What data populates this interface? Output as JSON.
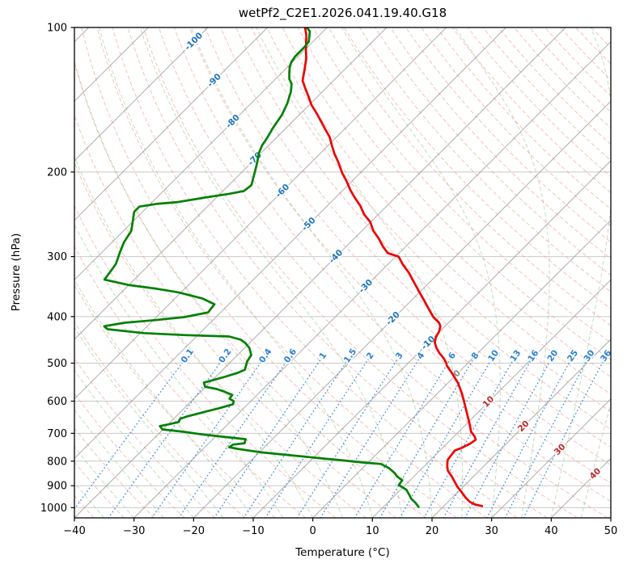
{
  "title": "wetPf2_C2E1.2026.041.19.40.G18",
  "axes": {
    "xlabel": "Temperature (°C)",
    "ylabel": "Pressure (hPa)",
    "x_ticks": [
      -40,
      -30,
      -20,
      -10,
      0,
      10,
      20,
      30,
      40,
      50
    ],
    "y_ticks": [
      100,
      200,
      300,
      400,
      500,
      600,
      700,
      800,
      900,
      1000
    ],
    "x_range": [
      -40,
      50
    ],
    "p_range": [
      100,
      1050
    ],
    "grid": true
  },
  "chart_data": {
    "type": "line",
    "subtype": "skew-t-log-p",
    "title": "wetPf2_C2E1.2026.041.19.40.G18",
    "xlabel": "Temperature (°C)",
    "ylabel": "Pressure (hPa)",
    "series": [
      {
        "name": "temperature",
        "color": "#ee0000",
        "units": [
          "degC",
          "hPa"
        ],
        "points": [
          [
            -83.7,
            100
          ],
          [
            -82.1,
            104
          ],
          [
            -79.9,
            111
          ],
          [
            -78.3,
            116
          ],
          [
            -76.8,
            122
          ],
          [
            -75.2,
            129
          ],
          [
            -73.4,
            134
          ],
          [
            -71.6,
            139
          ],
          [
            -69.6,
            145
          ],
          [
            -67.3,
            151
          ],
          [
            -65.2,
            157
          ],
          [
            -63.2,
            163
          ],
          [
            -61.2,
            169
          ],
          [
            -59.4,
            176
          ],
          [
            -57.6,
            183
          ],
          [
            -55.7,
            190
          ],
          [
            -53,
            201
          ],
          [
            -50.9,
            209
          ],
          [
            -48.8,
            218
          ],
          [
            -46.8,
            226
          ],
          [
            -44.5,
            235
          ],
          [
            -42.4,
            245
          ],
          [
            -40.1,
            254
          ],
          [
            -38.1,
            265
          ],
          [
            -35.9,
            275
          ],
          [
            -33.8,
            286
          ],
          [
            -31.9,
            295
          ],
          [
            -29.5,
            300
          ],
          [
            -27.4,
            312
          ],
          [
            -25.1,
            324
          ],
          [
            -22.5,
            340
          ],
          [
            -20,
            356
          ],
          [
            -17.6,
            372
          ],
          [
            -15.6,
            386
          ],
          [
            -13.5,
            401
          ],
          [
            -11.6,
            412
          ],
          [
            -10.8,
            419
          ],
          [
            -10.1,
            430
          ],
          [
            -9.7,
            442
          ],
          [
            -8.9,
            454
          ],
          [
            -7.8,
            465
          ],
          [
            -6.5,
            476
          ],
          [
            -4.8,
            489
          ],
          [
            -3.6,
            500
          ],
          [
            -3.1,
            506
          ],
          [
            -0.8,
            526
          ],
          [
            1.7,
            550
          ],
          [
            4,
            577
          ],
          [
            5.9,
            602
          ],
          [
            8.3,
            636
          ],
          [
            10.5,
            669
          ],
          [
            12.1,
            695
          ],
          [
            13.5,
            711
          ],
          [
            14.2,
            722
          ],
          [
            13.9,
            736
          ],
          [
            13.2,
            751
          ],
          [
            12.5,
            760
          ],
          [
            12.7,
            778
          ],
          [
            12.9,
            796
          ],
          [
            13.8,
            818
          ],
          [
            14.7,
            837
          ],
          [
            16.3,
            860
          ],
          [
            17.8,
            884
          ],
          [
            19,
            904
          ],
          [
            20.7,
            929
          ],
          [
            22.3,
            954
          ],
          [
            23.7,
            973
          ],
          [
            25,
            985
          ],
          [
            26.4,
            992
          ]
        ]
      },
      {
        "name": "dewpoint",
        "color": "#008000",
        "units": [
          "degC",
          "hPa"
        ],
        "points": [
          [
            -83.4,
            100
          ],
          [
            -82.2,
            102
          ],
          [
            -81.3,
            105
          ],
          [
            -80.7,
            107
          ],
          [
            -80.5,
            110
          ],
          [
            -80.5,
            112
          ],
          [
            -80.5,
            115
          ],
          [
            -80.2,
            118
          ],
          [
            -79.6,
            121
          ],
          [
            -78.8,
            124
          ],
          [
            -77.7,
            128
          ],
          [
            -76.5,
            131
          ],
          [
            -75.3,
            136
          ],
          [
            -74.6,
            140
          ],
          [
            -73.9,
            144
          ],
          [
            -72.9,
            152
          ],
          [
            -72.2,
            162
          ],
          [
            -71.5,
            170
          ],
          [
            -71.1,
            176
          ],
          [
            -70.3,
            183
          ],
          [
            -69.2,
            190
          ],
          [
            -68.1,
            198
          ],
          [
            -67.2,
            205
          ],
          [
            -66.2,
            213
          ],
          [
            -66.5,
            219
          ],
          [
            -68.5,
            222
          ],
          [
            -71.9,
            226
          ],
          [
            -75.7,
            231
          ],
          [
            -79,
            233
          ],
          [
            -81.4,
            236
          ],
          [
            -81.4,
            242
          ],
          [
            -80.2,
            252
          ],
          [
            -78.7,
            265
          ],
          [
            -78,
            280
          ],
          [
            -76.9,
            295
          ],
          [
            -75.7,
            311
          ],
          [
            -75.3,
            324
          ],
          [
            -75,
            335
          ],
          [
            -69.9,
            344
          ],
          [
            -64.7,
            350
          ],
          [
            -60.5,
            356
          ],
          [
            -55.3,
            367
          ],
          [
            -52.4,
            377
          ],
          [
            -52.1,
            392
          ],
          [
            -55.3,
            401
          ],
          [
            -59.8,
            407
          ],
          [
            -64.4,
            412
          ],
          [
            -67.2,
            419
          ],
          [
            -66.1,
            425
          ],
          [
            -59.4,
            433
          ],
          [
            -52.4,
            437
          ],
          [
            -44.5,
            440
          ],
          [
            -42,
            447
          ],
          [
            -40.7,
            454
          ],
          [
            -39.2,
            465
          ],
          [
            -37.7,
            481
          ],
          [
            -37.3,
            496
          ],
          [
            -36.3,
            516
          ],
          [
            -37,
            524
          ],
          [
            -38.5,
            534
          ],
          [
            -41,
            549
          ],
          [
            -40.1,
            560
          ],
          [
            -37.8,
            566
          ],
          [
            -36.1,
            573
          ],
          [
            -34.2,
            582
          ],
          [
            -34,
            593
          ],
          [
            -32.9,
            600
          ],
          [
            -32.5,
            609
          ],
          [
            -34.2,
            621
          ],
          [
            -36.2,
            633
          ],
          [
            -38.2,
            646
          ],
          [
            -38.9,
            653
          ],
          [
            -38.6,
            663
          ],
          [
            -40,
            671
          ],
          [
            -41.1,
            676
          ],
          [
            -40.1,
            687
          ],
          [
            -36.1,
            695
          ],
          [
            -32.9,
            703
          ],
          [
            -29,
            711
          ],
          [
            -24.5,
            720
          ],
          [
            -24,
            734
          ],
          [
            -25.7,
            739
          ],
          [
            -25.9,
            748
          ],
          [
            -24.3,
            754
          ],
          [
            -20,
            766
          ],
          [
            -15.6,
            775
          ],
          [
            -8.1,
            790
          ],
          [
            -5.1,
            796
          ],
          [
            -1,
            805
          ],
          [
            2.4,
            811
          ],
          [
            4.4,
            827
          ],
          [
            6.2,
            847
          ],
          [
            7.1,
            860
          ],
          [
            8.7,
            877
          ],
          [
            8.9,
            897
          ],
          [
            11,
            918
          ],
          [
            12.3,
            940
          ],
          [
            13.3,
            958
          ],
          [
            14.7,
            977
          ],
          [
            15.9,
            996
          ]
        ]
      }
    ],
    "isotherms": {
      "min": -120,
      "max": 50,
      "step": 10,
      "color": "#999999",
      "labels": [
        {
          "t": -100,
          "p": 107
        },
        {
          "t": -90,
          "p": 129
        },
        {
          "t": -80,
          "p": 157
        },
        {
          "t": -70,
          "p": 188
        },
        {
          "t": -60,
          "p": 219
        },
        {
          "t": -50,
          "p": 257
        },
        {
          "t": -40,
          "p": 300
        },
        {
          "t": -30,
          "p": 346
        },
        {
          "t": -20,
          "p": 404
        },
        {
          "t": -10,
          "p": 454
        },
        {
          "t": 0,
          "p": 526
        },
        {
          "t": 10,
          "p": 602
        },
        {
          "t": 20,
          "p": 677
        },
        {
          "t": 30,
          "p": 757
        },
        {
          "t": 40,
          "p": 850
        }
      ],
      "label_colors": {
        "negative": "#1f74bb",
        "zero": "#8c8c8c",
        "positive": "#c02828"
      }
    },
    "dry_adiabats": {
      "min": -40,
      "max": 190,
      "step": 5,
      "color": "#f08d7e"
    },
    "moist_adiabats": {
      "min": -40,
      "max": 50,
      "step": 5,
      "color": "#7fbf7f"
    },
    "mixing_ratios": {
      "values": [
        0.1,
        0.2,
        0.4,
        0.6,
        1,
        1.5,
        2,
        3,
        4,
        6,
        8,
        10,
        13,
        16,
        20,
        25,
        30,
        36
      ],
      "color": "#2f86d8",
      "label_color": "#2a7fd4",
      "label_pressure": 483,
      "top_pressure": 490
    },
    "gridline_color": "#c9c9c9"
  }
}
